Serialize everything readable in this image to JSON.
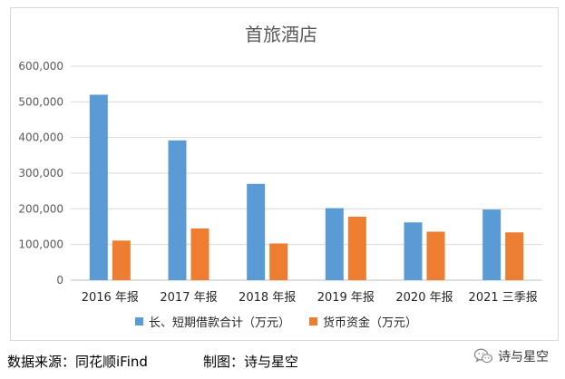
{
  "chart_data": {
    "type": "bar",
    "title": "首旅酒店",
    "categories": [
      "2016 年报",
      "2017 年报",
      "2018 年报",
      "2019 年报",
      "2020 年报",
      "2021 三季报"
    ],
    "series": [
      {
        "name": "长、短期借款合计（万元）",
        "color": "#5b9bd5",
        "values": [
          520000,
          392000,
          270000,
          202000,
          162000,
          198000
        ]
      },
      {
        "name": "货币资金（万元）",
        "color": "#ed7d31",
        "values": [
          111000,
          145000,
          103000,
          178000,
          136000,
          134000
        ]
      }
    ],
    "yticks": [
      "0",
      "100,000",
      "200,000",
      "300,000",
      "400,000",
      "500,000",
      "600,000"
    ],
    "ylim": [
      0,
      600000
    ],
    "grid": true,
    "legend": "bottom"
  },
  "footer": {
    "source": "数据来源：同花顺iFind",
    "credit": "制图：诗与星空"
  },
  "watermark": {
    "text": "诗与星空",
    "icon": "wechat-icon"
  }
}
